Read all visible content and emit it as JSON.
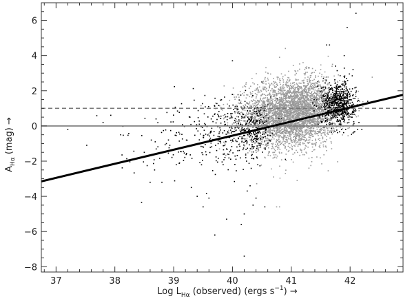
{
  "chart_data": {
    "type": "scatter",
    "xlabel_parts": {
      "pre": "Log L",
      "sub": "Hα",
      "post": " (observed) (ergs s",
      "sup": "−1",
      "end": ") →"
    },
    "ylabel_parts": {
      "pre": "A",
      "sub": "Hα",
      "post": " (mag) →"
    },
    "xlim": [
      36.75,
      42.9
    ],
    "ylim": [
      -8.3,
      7.0
    ],
    "x_ticks": [
      37,
      38,
      39,
      40,
      41,
      42
    ],
    "y_ticks": [
      -8,
      -6,
      -4,
      -2,
      0,
      2,
      4,
      6
    ],
    "x_tick_labels": [
      "37",
      "38",
      "39",
      "40",
      "41",
      "42"
    ],
    "y_tick_labels": [
      "−8",
      "−6",
      "−4",
      "−2",
      "0",
      "2",
      "4",
      "6"
    ],
    "grid": false,
    "reference_lines": [
      {
        "y": 0,
        "style": "solid",
        "color": "#777777"
      },
      {
        "y": 1,
        "style": "dashed",
        "color": "#777777"
      }
    ],
    "fit_line": {
      "slope": 0.8,
      "intercept": -32.55,
      "color": "#000000"
    },
    "series": [
      {
        "color": "#9a9a9a",
        "clusters": [
          {
            "x": 41.0,
            "y": 0.7,
            "sx": 0.38,
            "sy": 0.95,
            "n": 3000
          },
          {
            "x": 40.6,
            "y": 0.3,
            "sx": 0.3,
            "sy": 0.8,
            "n": 500
          },
          {
            "x": 41.4,
            "y": 1.1,
            "sx": 0.25,
            "sy": 0.8,
            "n": 700
          }
        ],
        "points": [
          [
            40.9,
            4.4
          ],
          [
            41.2,
            3.6
          ],
          [
            41.7,
            3.5
          ],
          [
            40.8,
            3.9
          ],
          [
            41.3,
            -2.4
          ],
          [
            40.9,
            -2.7
          ],
          [
            41.1,
            -3.1
          ],
          [
            40.7,
            -2.9
          ],
          [
            41.6,
            -1.4
          ],
          [
            41.8,
            2.9
          ],
          [
            41.5,
            3.2
          ],
          [
            40.6,
            3.0
          ],
          [
            41.9,
            2.5
          ],
          [
            40.75,
            -4.6
          ],
          [
            40.8,
            -4.6
          ]
        ]
      },
      {
        "color": "#000000",
        "clusters": [
          {
            "x": 41.8,
            "y": 1.3,
            "sx": 0.14,
            "sy": 0.6,
            "n": 650
          },
          {
            "x": 40.35,
            "y": -0.2,
            "sx": 0.15,
            "sy": 0.85,
            "n": 230
          },
          {
            "x": 39.8,
            "y": -0.3,
            "sx": 0.35,
            "sy": 1.0,
            "n": 240
          },
          {
            "x": 38.9,
            "y": -1.0,
            "sx": 0.6,
            "sy": 1.1,
            "n": 70
          }
        ],
        "points": [
          [
            42.1,
            6.4
          ],
          [
            41.95,
            5.6
          ],
          [
            41.65,
            4.6
          ],
          [
            41.6,
            4.6
          ],
          [
            41.3,
            3.3
          ],
          [
            41.9,
            4.0
          ],
          [
            41.75,
            3.4
          ],
          [
            42.05,
            3.2
          ],
          [
            42.3,
            1.4
          ],
          [
            42.2,
            1.0
          ],
          [
            42.15,
            0.2
          ],
          [
            42.2,
            -0.2
          ],
          [
            42.05,
            -0.4
          ],
          [
            40.0,
            3.7
          ],
          [
            40.4,
            -4.1
          ],
          [
            40.35,
            -4.5
          ],
          [
            40.25,
            -3.7
          ],
          [
            40.3,
            -3.4
          ],
          [
            40.2,
            -5.0
          ],
          [
            40.15,
            -5.6
          ],
          [
            40.2,
            -7.4
          ],
          [
            39.9,
            -5.3
          ],
          [
            39.7,
            -6.2
          ],
          [
            39.4,
            -4.0
          ],
          [
            39.5,
            -4.6
          ],
          [
            38.6,
            -3.2
          ],
          [
            38.8,
            -3.2
          ],
          [
            38.1,
            -0.5
          ],
          [
            37.8,
            0.2
          ],
          [
            37.2,
            -0.2
          ],
          [
            38.5,
            -1.5
          ],
          [
            38.7,
            0.4
          ],
          [
            39.1,
            -2.1
          ],
          [
            39.6,
            -4.1
          ],
          [
            39.3,
            -3.5
          ],
          [
            40.55,
            -4.6
          ],
          [
            40.9,
            -1.9
          ],
          [
            40.5,
            2.5
          ]
        ]
      }
    ]
  }
}
